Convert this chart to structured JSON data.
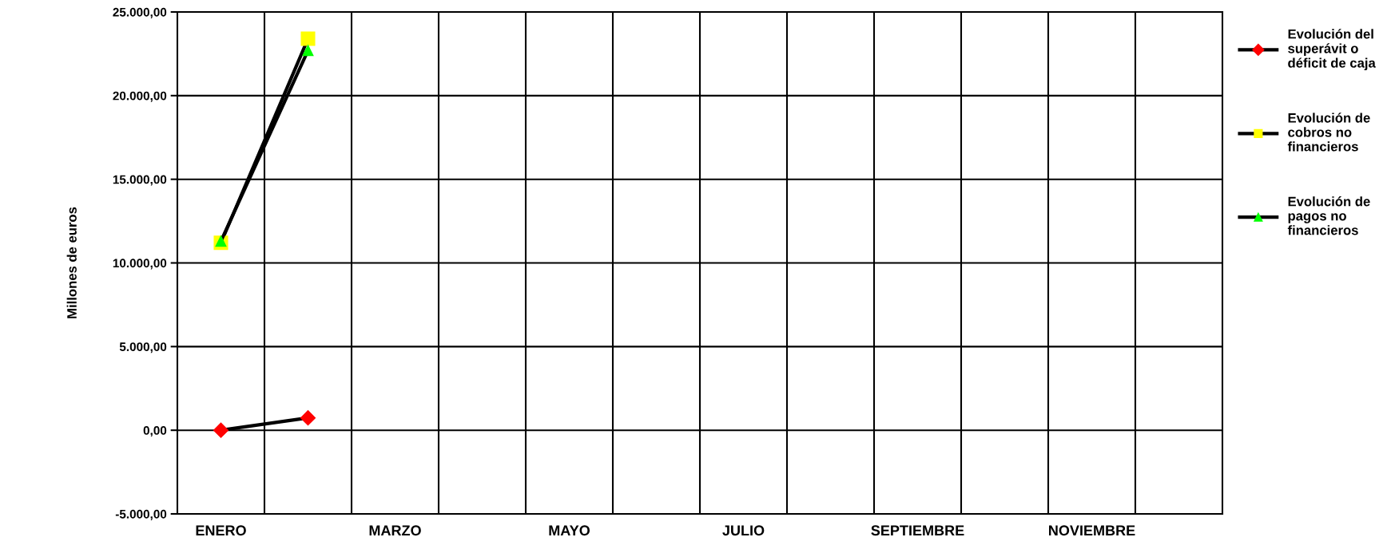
{
  "chart_data": {
    "type": "line",
    "ylabel": "Millones de euros",
    "categories": [
      "ENERO",
      null,
      "MARZO",
      null,
      "MAYO",
      null,
      "JULIO",
      null,
      "SEPTIEMBRE",
      null,
      "NOVIEMBRE",
      null
    ],
    "series": [
      {
        "name": "Evolución del superávit o déficit de caja",
        "color": "#ff0000",
        "marker": "diamond",
        "values": [
          0,
          740,
          null,
          null,
          null,
          null,
          null,
          null,
          null,
          null,
          null,
          null
        ]
      },
      {
        "name": "Evolución de cobros no financieros",
        "color": "#ffff00",
        "marker": "square",
        "values": [
          11200,
          23400,
          null,
          null,
          null,
          null,
          null,
          null,
          null,
          null,
          null,
          null
        ]
      },
      {
        "name": "Evolución de pagos no financieros",
        "color": "#00ff00",
        "marker": "triangle",
        "values": [
          11300,
          22700,
          null,
          null,
          null,
          null,
          null,
          null,
          null,
          null,
          null,
          null
        ]
      }
    ],
    "ylim": [
      -5000,
      25000
    ],
    "yticks": [
      {
        "value": -5000,
        "label": "-5.000,00"
      },
      {
        "value": 0,
        "label": "0,00"
      },
      {
        "value": 5000,
        "label": "5.000,00"
      },
      {
        "value": 10000,
        "label": "10.000,00"
      },
      {
        "value": 15000,
        "label": "15.000,00"
      },
      {
        "value": 20000,
        "label": "20.000,00"
      },
      {
        "value": 25000,
        "label": "25.000,00"
      }
    ],
    "grid": true,
    "legend": "right"
  }
}
